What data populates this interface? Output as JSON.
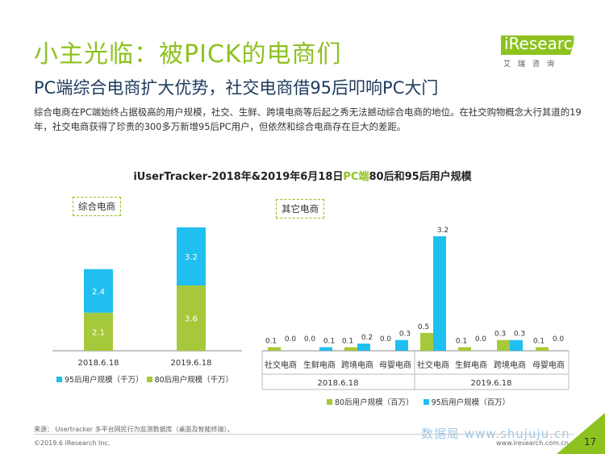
{
  "page": {
    "title": "小主光临：被PICK的电商们",
    "subtitle": "PC端综合电商扩大优势，社交电商借95后叩响PC大门",
    "body": "综合电商在PC端始终占据极高的用户规模，社交、生鲜、跨境电商等后起之秀无法撼动综合电商的地位。在社交购物概念大行其道的19年，社交电商获得了珍贵的300多万新增95后PC用户，但依然和综合电商存在巨大的差距。",
    "chart_title_prefix": "iUserTracker-2018年&2019年6月18日",
    "chart_title_highlight": "PC端",
    "chart_title_suffix": "80后和95后用户规模",
    "logo_text": "iResearch",
    "logo_sub": "艾瑞咨询",
    "source": "来源：  Usertracker 多平台网民行为监测数据库（桌面及智能终端）。",
    "copyright": "©2019.6 iResearch Inc.",
    "website": "www.iresearch.com.cn",
    "watermark": "数据局 www.shujuju.cn",
    "page_number": "17"
  },
  "colors": {
    "green": "#a6c93b",
    "cyan": "#1fbfef",
    "accent": "#8dc21f",
    "logo_bg": "#8dc21f"
  },
  "chart_data": [
    {
      "type": "bar",
      "stacked": true,
      "label": "综合电商",
      "categories": [
        "2018.6.18",
        "2019.6.18"
      ],
      "series": [
        {
          "name": "80后用户规模（千万）",
          "values": [
            2.1,
            3.6
          ],
          "color": "#a6c93b"
        },
        {
          "name": "95后用户规模（千万）",
          "values": [
            2.4,
            3.2
          ],
          "color": "#1fbfef"
        }
      ],
      "legend": [
        "95后用户规模（千万）",
        "80后用户规模（千万）"
      ]
    },
    {
      "type": "bar",
      "stacked": false,
      "label": "其它电商",
      "groups": [
        "2018.6.18",
        "2019.6.18"
      ],
      "categories": [
        "社交电商",
        "生鲜电商",
        "跨境电商",
        "母婴电商",
        "社交电商",
        "生鲜电商",
        "跨境电商",
        "母婴电商"
      ],
      "series": [
        {
          "name": "80后用户规模（百万）",
          "values": [
            0.1,
            0.0,
            0.1,
            0.0,
            0.5,
            0.1,
            0.3,
            0.1
          ],
          "color": "#a6c93b"
        },
        {
          "name": "95后用户规模（百万）",
          "values": [
            0.0,
            0.1,
            0.2,
            0.3,
            3.2,
            0.0,
            0.3,
            0.0
          ],
          "color": "#1fbfef"
        }
      ],
      "legend": [
        "80后用户规模（百万）",
        "95后用户规模（百万）"
      ]
    }
  ]
}
